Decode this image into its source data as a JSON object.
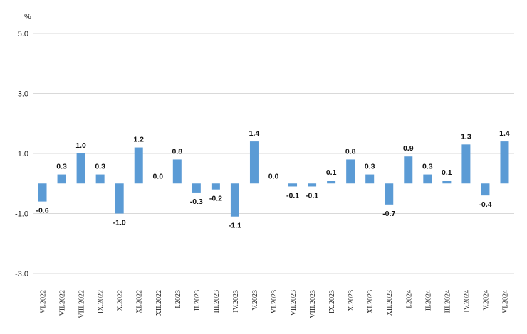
{
  "chart_data": {
    "type": "bar",
    "unit_label": "%",
    "title": "",
    "xlabel": "",
    "ylabel": "",
    "ylim": [
      -3.0,
      5.0
    ],
    "yticks": [
      "5.0",
      "3.0",
      "1.0",
      "-1.0",
      "-3.0"
    ],
    "ytick_values": [
      5,
      3,
      1,
      -1,
      -3
    ],
    "grid": true,
    "bar_color": "#5b9bd5",
    "categories": [
      "VI.2022",
      "VII.2022",
      "VIII.2022",
      "IX.2022",
      "X.2022",
      "XI.2022",
      "XII.2022",
      "I.2023",
      "II.2023",
      "III.2023",
      "IV.2023",
      "V.2023",
      "VI.2023",
      "VII.2023",
      "VIII.2023",
      "IX.2023",
      "X.2023",
      "XI.2023",
      "XII.2023",
      "I.2024",
      "II.2024",
      "III.2024",
      "IV.2024",
      "V.2024",
      "VI.2024"
    ],
    "values": [
      -0.6,
      0.3,
      1.0,
      0.3,
      -1.0,
      1.2,
      0.0,
      0.8,
      -0.3,
      -0.2,
      -1.1,
      1.4,
      0.0,
      -0.1,
      -0.1,
      0.1,
      0.8,
      0.3,
      -0.7,
      0.9,
      0.3,
      0.1,
      1.3,
      -0.4,
      1.4
    ],
    "labels": [
      "-0.6",
      "0.3",
      "1.0",
      "0.3",
      "-1.0",
      "1.2",
      "0.0",
      "0.8",
      "-0.3",
      "-0.2",
      "-1.1",
      "1.4",
      "0.0",
      "-0.1",
      "-0.1",
      "0.1",
      "0.8",
      "0.3",
      "-0.7",
      "0.9",
      "0.3",
      "0.1",
      "1.3",
      "-0.4",
      "1.4"
    ]
  }
}
